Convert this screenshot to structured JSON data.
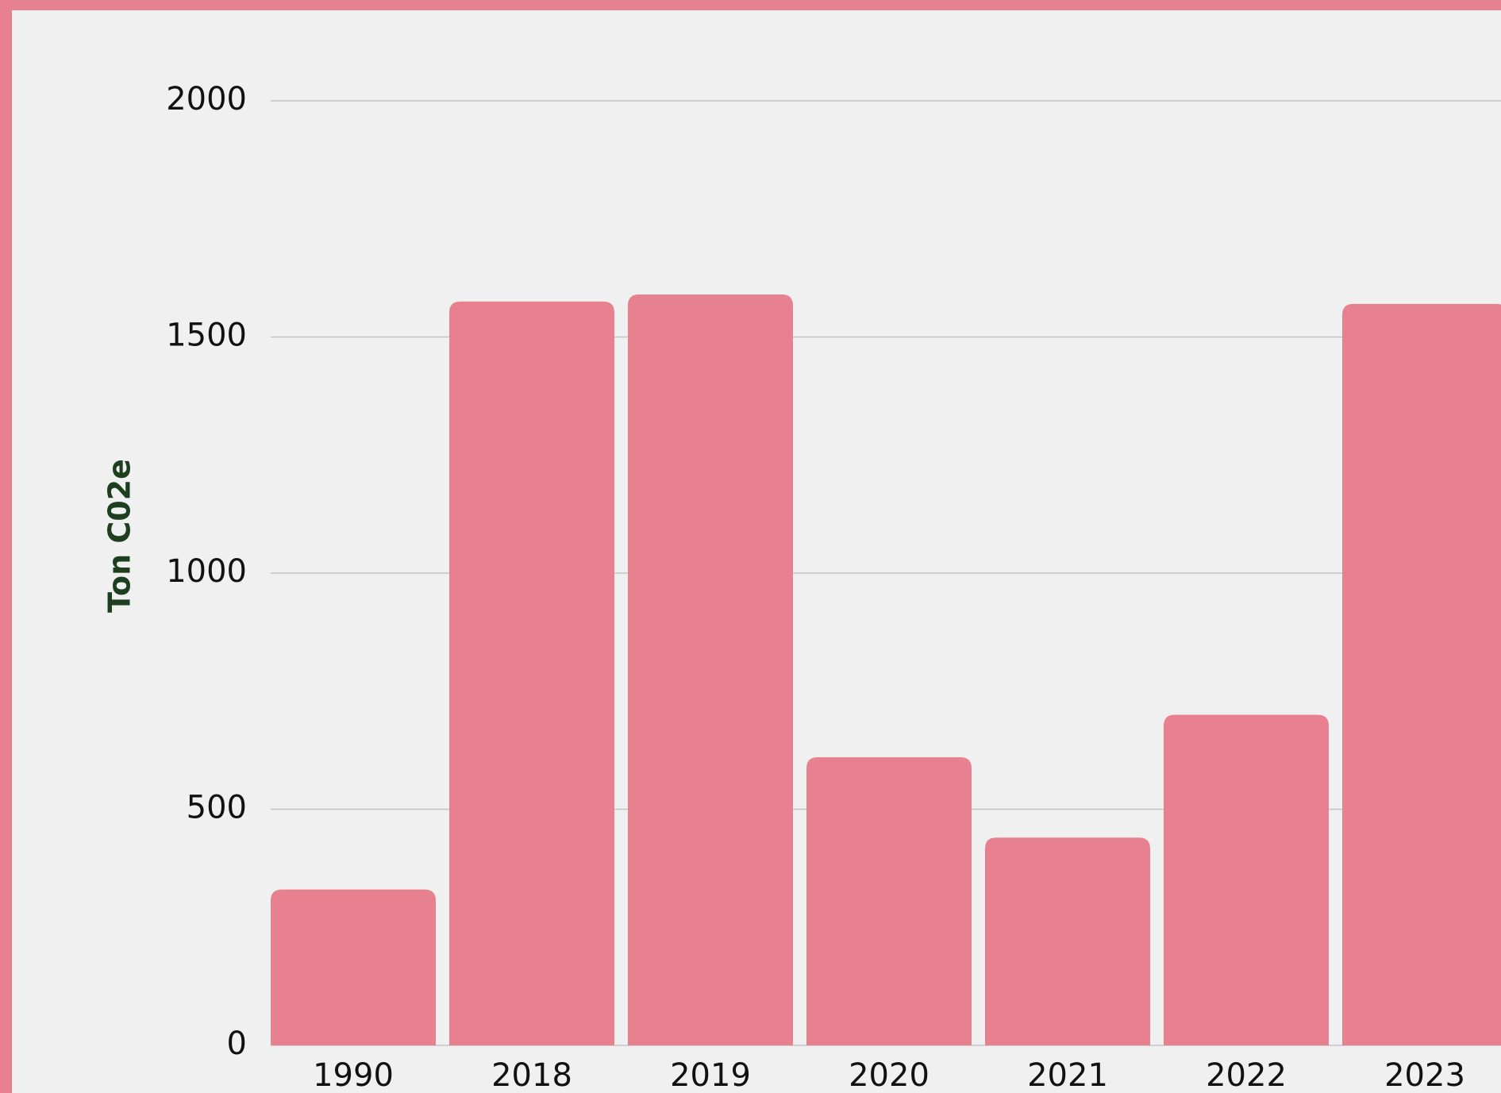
{
  "chart_data": {
    "type": "bar",
    "y_label": "Ton C02e",
    "categories": [
      "1990",
      "2018",
      "2019",
      "2020",
      "2021",
      "2022",
      "2023"
    ],
    "values": [
      330,
      1575,
      1590,
      610,
      440,
      700,
      1570
    ],
    "color": "#e8818f",
    "ylim": [
      0,
      2000
    ],
    "yticks": [
      0,
      500,
      1000,
      1500,
      2000
    ],
    "grid": true
  }
}
